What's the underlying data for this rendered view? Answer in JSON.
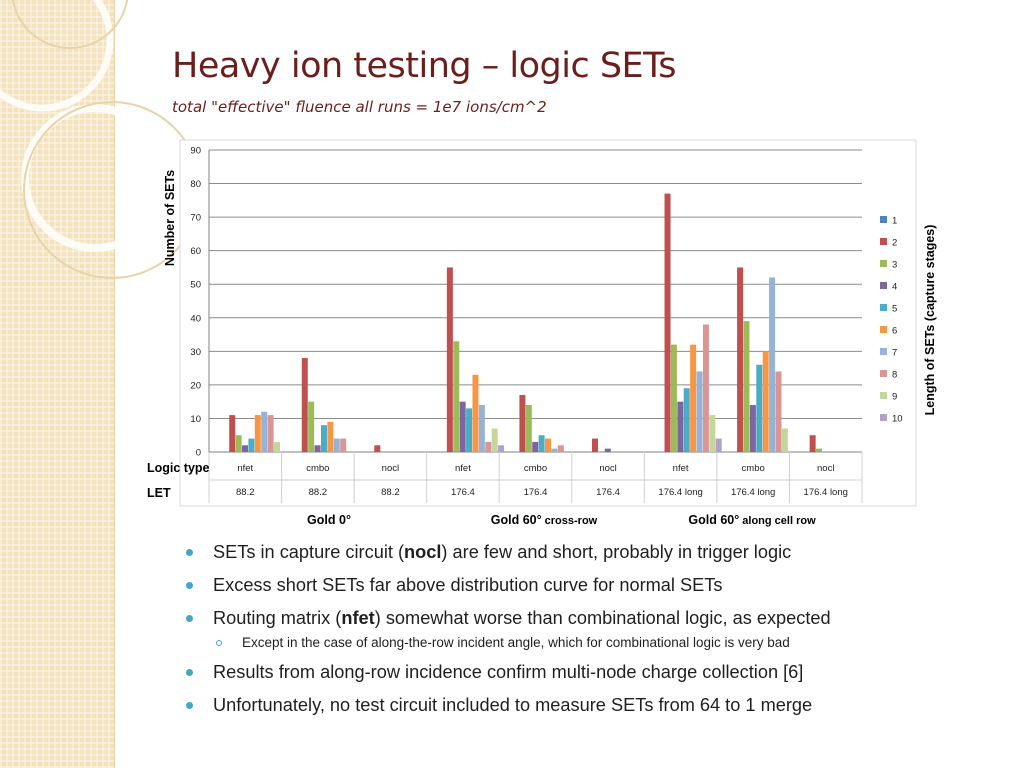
{
  "slide": {
    "title": "Heavy ion testing – logic SETs",
    "subtitle": "total \"effective\" fluence all runs = 1e7 ions/cm^2"
  },
  "chart_data": {
    "type": "bar",
    "ylabel": "Number of SETs",
    "legend_title": "Length of SETs (capture stages)",
    "legend_position": "right",
    "ylim": [
      0,
      90
    ],
    "y_ticks": [
      "0",
      "10",
      "20",
      "30",
      "40",
      "50",
      "60",
      "70",
      "80",
      "90"
    ],
    "grid": true,
    "row_labels": {
      "logic_type": "Logic type",
      "let": "LET"
    },
    "categories": [
      {
        "logic_type": "nfet",
        "let": "88.2"
      },
      {
        "logic_type": "cmbo",
        "let": "88.2"
      },
      {
        "logic_type": "nocl",
        "let": "88.2"
      },
      {
        "logic_type": "nfet",
        "let": "176.4"
      },
      {
        "logic_type": "cmbo",
        "let": "176.4"
      },
      {
        "logic_type": "nocl",
        "let": "176.4"
      },
      {
        "logic_type": "nfet",
        "let": "176.4 long"
      },
      {
        "logic_type": "cmbo",
        "let": "176.4 long"
      },
      {
        "logic_type": "nocl",
        "let": "176.4 long"
      }
    ],
    "group_labels": [
      {
        "prefix": "Gold 0°",
        "suffix": ""
      },
      {
        "prefix": "Gold 60°",
        "suffix": " cross-row"
      },
      {
        "prefix": "Gold 60°",
        "suffix": " along cell row"
      }
    ],
    "series": [
      {
        "name": "1",
        "color": "#4f81bd",
        "values": [
          0,
          0,
          0,
          0,
          0,
          0,
          0,
          0,
          0
        ]
      },
      {
        "name": "2",
        "color": "#c0504d",
        "values": [
          11,
          28,
          2,
          55,
          17,
          4,
          77,
          55,
          5
        ]
      },
      {
        "name": "3",
        "color": "#9bbb59",
        "values": [
          5,
          15,
          0,
          33,
          14,
          0,
          32,
          39,
          1
        ]
      },
      {
        "name": "4",
        "color": "#8064a2",
        "values": [
          2,
          2,
          0,
          15,
          3,
          1,
          15,
          14,
          0
        ]
      },
      {
        "name": "5",
        "color": "#4bacc6",
        "values": [
          4,
          8,
          0,
          13,
          5,
          0,
          19,
          26,
          0
        ]
      },
      {
        "name": "6",
        "color": "#f79646",
        "values": [
          11,
          9,
          0,
          23,
          4,
          0,
          32,
          30,
          0
        ]
      },
      {
        "name": "7",
        "color": "#95b3d7",
        "values": [
          12,
          4,
          0,
          14,
          1,
          0,
          24,
          52,
          0
        ]
      },
      {
        "name": "8",
        "color": "#da9694",
        "values": [
          11,
          4,
          0,
          3,
          2,
          0,
          38,
          24,
          0
        ]
      },
      {
        "name": "9",
        "color": "#c3d69b",
        "values": [
          3,
          0,
          0,
          7,
          0,
          0,
          11,
          7,
          0
        ]
      },
      {
        "name": "10",
        "color": "#b2a1c7",
        "values": [
          0,
          0,
          0,
          2,
          0,
          0,
          4,
          0,
          0
        ]
      }
    ]
  },
  "bullets": [
    {
      "pre": "SETs in capture circuit (",
      "bold": "nocl",
      "post": ") are few and short, probably in trigger logic"
    },
    {
      "pre": "Excess short SETs far above distribution curve for normal SETs",
      "bold": "",
      "post": ""
    },
    {
      "pre": "Routing matrix (",
      "bold": "nfet",
      "post": ") somewhat worse than combinational logic, as expected"
    },
    {
      "sub": true,
      "pre": "Except in the case of along-the-row incident angle, which for combinational logic is very bad",
      "bold": "",
      "post": ""
    },
    {
      "pre": "Results from along-row incidence confirm multi-node charge collection [6]",
      "bold": "",
      "post": ""
    },
    {
      "pre": "Unfortunately, no test circuit included to measure SETs from 64 to 1 merge",
      "bold": "",
      "post": ""
    }
  ]
}
